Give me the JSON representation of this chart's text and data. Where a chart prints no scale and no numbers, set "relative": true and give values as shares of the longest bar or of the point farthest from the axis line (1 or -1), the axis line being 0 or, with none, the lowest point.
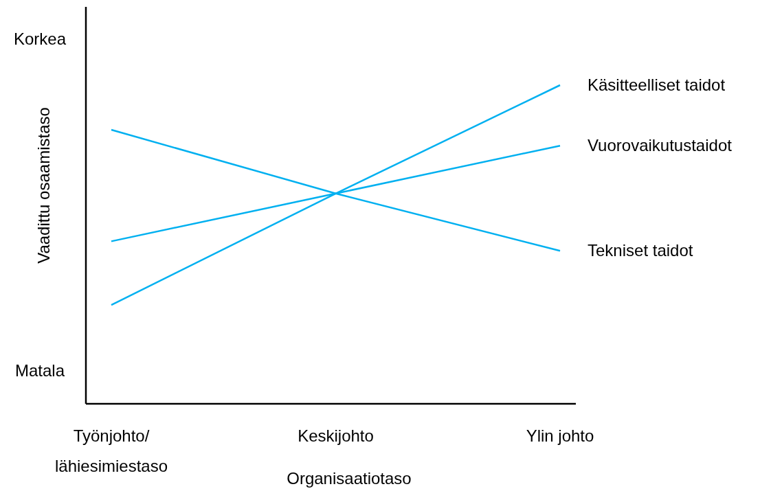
{
  "chart_data": {
    "type": "line",
    "relative": true,
    "xlabel": "Organisaatiotaso",
    "ylabel": "Vaadittu osaamistaso",
    "categories": [
      "Työnjohto/\nlähiesimiestaso",
      "Keskijohto",
      "Ylin johto"
    ],
    "series": [
      {
        "name": "Käsitteelliset taidot",
        "color": "#00b0f0",
        "values": [
          0.31,
          0.66,
          1.0
        ]
      },
      {
        "name": "Vuorovaikutustaidot",
        "color": "#00b0f0",
        "values": [
          0.51,
          0.66,
          0.81
        ]
      },
      {
        "name": "Tekniset taidot",
        "color": "#00b0f0",
        "values": [
          0.86,
          0.66,
          0.48
        ]
      }
    ],
    "annotations": [
      "Korkea",
      "Matala"
    ],
    "legend": false,
    "marker": "none",
    "line_style": "solid"
  }
}
